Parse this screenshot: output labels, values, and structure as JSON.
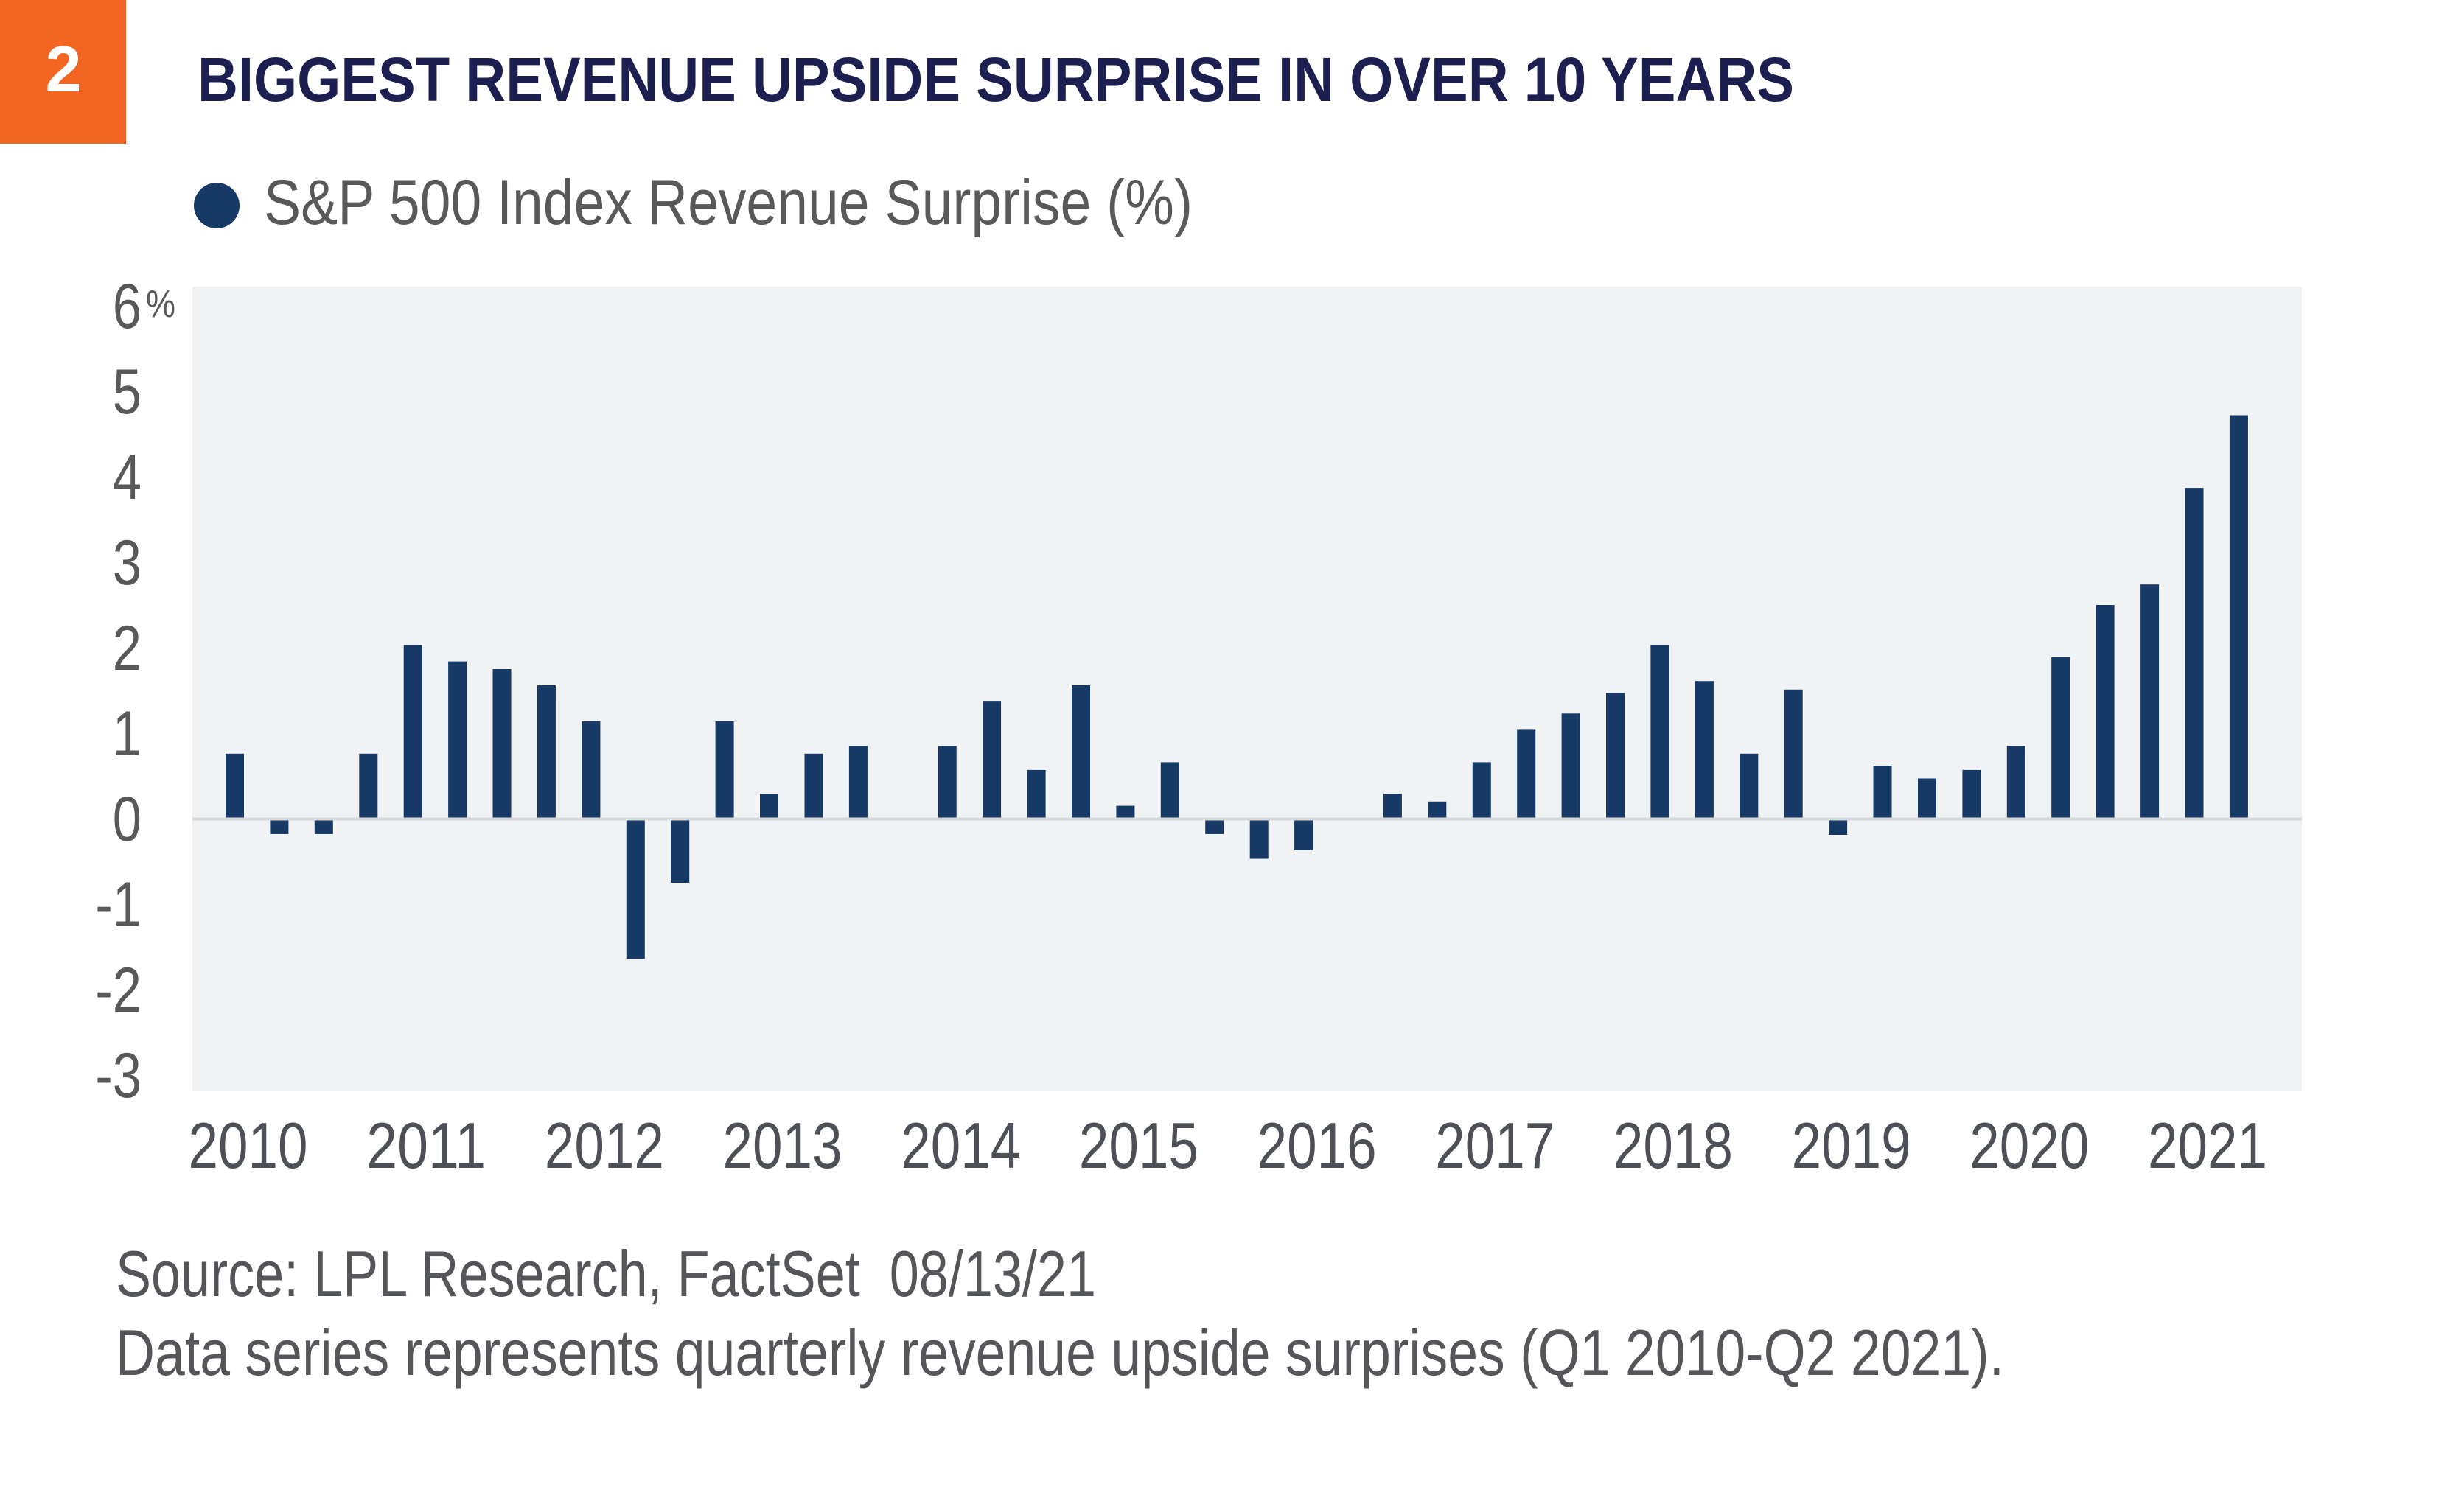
{
  "badge": {
    "number": "2",
    "color": "#F26522"
  },
  "title": "BIGGEST REVENUE UPSIDE SURPRISE IN OVER 10 YEARS",
  "legend": {
    "marker_icon": "circle-marker",
    "label": "S&P 500 Index Revenue Surprise (%)"
  },
  "colors": {
    "title": "#1B2050",
    "bar": "#173966",
    "plot_background": "#F1F2F4",
    "zero_line": "#D8D9DB",
    "text": "#58595B"
  },
  "footer": {
    "source": "Source: LPL Research, FactSet  08/13/21",
    "note": "Data series represents quarterly revenue upside surprises (Q1 2010-Q2 2021)."
  },
  "chart_data": {
    "type": "bar",
    "title": "BIGGEST REVENUE UPSIDE SURPRISE IN OVER 10 YEARS",
    "xlabel": "",
    "ylabel": "",
    "ylim": [
      -3,
      6
    ],
    "y_ticks": [
      6,
      5,
      4,
      3,
      2,
      1,
      0,
      -1,
      -2,
      -3
    ],
    "y_tick_labels": [
      "6",
      "5",
      "4",
      "3",
      "2",
      "1",
      "0",
      "-1",
      "-2",
      "-3"
    ],
    "y_unit_label": "%",
    "x_tick_labels": [
      "2010",
      "2011",
      "2012",
      "2013",
      "2014",
      "2015",
      "2016",
      "2017",
      "2018",
      "2019",
      "2020",
      "2021"
    ],
    "grid": false,
    "legend": {
      "position": "top-left",
      "entries": [
        "S&P 500 Index Revenue Surprise (%)"
      ]
    },
    "categories": [
      "Q1 2010",
      "Q2 2010",
      "Q3 2010",
      "Q4 2010",
      "Q1 2011",
      "Q2 2011",
      "Q3 2011",
      "Q4 2011",
      "Q1 2012",
      "Q2 2012",
      "Q3 2012",
      "Q4 2012",
      "Q1 2013",
      "Q2 2013",
      "Q3 2013",
      "Q4 2013",
      "Q1 2014",
      "Q2 2014",
      "Q3 2014",
      "Q4 2014",
      "Q1 2015",
      "Q2 2015",
      "Q3 2015",
      "Q4 2015",
      "Q1 2016",
      "Q2 2016",
      "Q3 2016",
      "Q4 2016",
      "Q1 2017",
      "Q2 2017",
      "Q3 2017",
      "Q4 2017",
      "Q1 2018",
      "Q2 2018",
      "Q3 2018",
      "Q4 2018",
      "Q1 2019",
      "Q2 2019",
      "Q3 2019",
      "Q4 2019",
      "Q1 2020",
      "Q2 2020",
      "Q3 2020",
      "Q4 2020",
      "Q1 2021",
      "Q2 2021"
    ],
    "series": [
      {
        "name": "S&P 500 Index Revenue Surprise (%)",
        "values": [
          0.76,
          -0.18,
          -0.18,
          0.76,
          2.03,
          1.84,
          1.75,
          1.56,
          1.14,
          -1.64,
          -0.75,
          1.14,
          0.29,
          0.76,
          0.85,
          0.0,
          0.85,
          1.37,
          0.57,
          1.56,
          0.15,
          0.66,
          -0.18,
          -0.47,
          -0.37,
          0.0,
          0.29,
          0.2,
          0.66,
          1.04,
          1.23,
          1.47,
          2.03,
          1.61,
          0.76,
          1.51,
          -0.19,
          0.62,
          0.47,
          0.57,
          0.85,
          1.89,
          2.5,
          2.74,
          3.87,
          4.72
        ]
      }
    ]
  }
}
